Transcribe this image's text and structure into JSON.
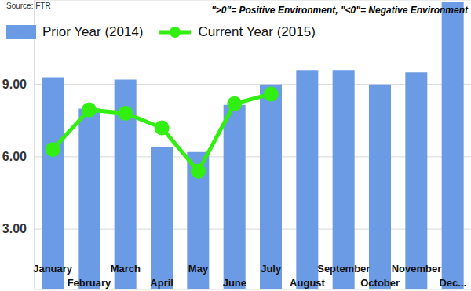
{
  "chart_data": {
    "type": "bar",
    "source": "Source: FTR",
    "annotation": "\">0\"= Positive Environment, \"<0\"= Negative Environment",
    "categories": [
      "January",
      "February",
      "March",
      "April",
      "May",
      "June",
      "July",
      "August",
      "September",
      "October",
      "November",
      "Dec..."
    ],
    "series": [
      {
        "name": "Prior Year (2014)",
        "type": "bar",
        "color": "#6c9be6",
        "values": [
          9.3,
          8.0,
          9.2,
          6.4,
          6.2,
          8.15,
          9.0,
          9.6,
          9.6,
          9.0,
          9.5,
          12.4
        ]
      },
      {
        "name": "Current Year (2015)",
        "type": "line",
        "color": "#33ee11",
        "marker": "circle",
        "values": [
          6.3,
          7.95,
          7.8,
          7.2,
          5.4,
          8.2,
          8.6,
          null,
          null,
          null,
          null,
          null
        ]
      }
    ],
    "ylim": [
      0.5,
      12.5
    ],
    "yticks": [
      {
        "value": 3,
        "label": "3.00"
      },
      {
        "value": 6,
        "label": "6.00"
      },
      {
        "value": 9,
        "label": "9.00"
      }
    ],
    "grid": true,
    "legend": "top-left"
  }
}
